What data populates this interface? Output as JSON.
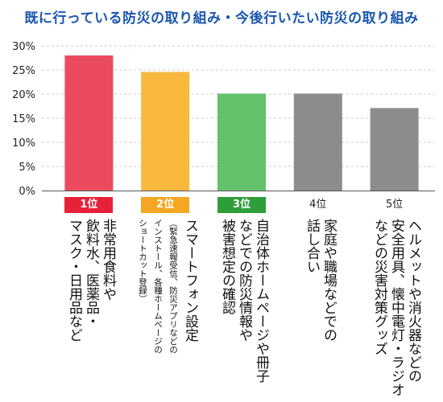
{
  "chart_data": {
    "type": "bar",
    "title": "既に行っている防災の取り組み・今後行いたい防災の取り組み",
    "ylim": [
      0,
      30
    ],
    "yticks": [
      "0%",
      "5%",
      "10%",
      "15%",
      "20%",
      "25%",
      "30%"
    ],
    "grid": true,
    "bars": [
      {
        "rank": "1位",
        "value": 28,
        "color": "#eb4b5f",
        "rank_color": "#e8213a",
        "label": "非常用食料や\n飲料水、医薬品・\nマスク・日用品など",
        "note": ""
      },
      {
        "rank": "2位",
        "value": 24.6,
        "color": "#f7b83d",
        "rank_color": "#f5a623",
        "label": "スマートフォン設定",
        "note": "（緊急速報受信、防災アプリなどの\nインストール、各種ホームページの\nショートカット登録）"
      },
      {
        "rank": "3位",
        "value": 20.1,
        "color": "#62c16a",
        "rank_color": "#2f9e3a",
        "label": "自治体ホームページや冊子\nなどでの防災情報や\n被害想定の確認",
        "note": ""
      },
      {
        "rank": "4位",
        "value": 20.1,
        "color": "#8c8c8c",
        "rank_color": "",
        "label": "家庭や職場などでの\n話し合い",
        "note": ""
      },
      {
        "rank": "5位",
        "value": 17.1,
        "color": "#8c8c8c",
        "rank_color": "",
        "label": "ヘルメットや消火器などの\n安全用具、懐中電灯・ラジオ\nなどの災害対策グッズ",
        "note": ""
      }
    ]
  }
}
